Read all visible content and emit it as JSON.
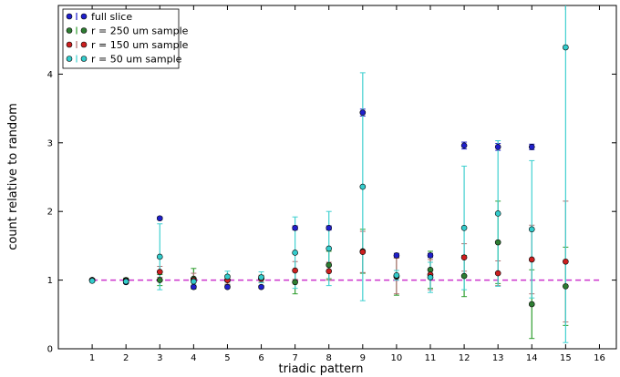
{
  "chart_data": {
    "type": "scatter",
    "title": "",
    "xlabel": "triadic pattern",
    "ylabel": "count relative to random",
    "xlim": [
      0,
      16.5
    ],
    "ylim": [
      0,
      5
    ],
    "x_ticks": [
      1,
      2,
      3,
      4,
      5,
      6,
      7,
      8,
      9,
      10,
      11,
      12,
      13,
      14,
      15,
      16
    ],
    "y_ticks": [
      0,
      1,
      2,
      3,
      4
    ],
    "grid": false,
    "legend_position": "top-left",
    "reference_line": {
      "y": 1,
      "color": "#cc33cc",
      "style": "dashed"
    },
    "series": [
      {
        "name": "full slice",
        "color": "#1f1fcc",
        "error_color": "#1f1fcc",
        "x": [
          1,
          2,
          3,
          4,
          5,
          6,
          7,
          8,
          9,
          10,
          11,
          12,
          13,
          14
        ],
        "y": [
          1.0,
          0.97,
          1.9,
          0.9,
          0.9,
          0.9,
          1.76,
          1.76,
          3.44,
          1.36,
          1.36,
          2.96,
          2.94,
          2.94
        ],
        "err": [
          0.02,
          0.02,
          0.02,
          0.02,
          0.02,
          0.02,
          0.03,
          0.03,
          0.05,
          0.03,
          0.03,
          0.05,
          0.05,
          0.04
        ]
      },
      {
        "name": "r = 250 um sample",
        "color": "#2e7d32",
        "error_color": "#2e9d2e",
        "x": [
          1,
          2,
          3,
          4,
          5,
          6,
          7,
          8,
          9,
          10,
          11,
          12,
          13,
          14,
          15
        ],
        "y": [
          1.0,
          1.0,
          1.0,
          1.02,
          1.0,
          1.02,
          0.97,
          1.22,
          1.42,
          1.05,
          1.15,
          1.06,
          1.55,
          0.65,
          0.91
        ],
        "err": [
          0.02,
          0.03,
          0.08,
          0.15,
          0.07,
          0.05,
          0.17,
          0.2,
          0.32,
          0.27,
          0.27,
          0.3,
          0.6,
          0.5,
          0.57
        ]
      },
      {
        "name": "r = 150 um sample",
        "color": "#cc1f1f",
        "error_color": "#b07070",
        "x": [
          1,
          2,
          3,
          4,
          5,
          6,
          7,
          8,
          9,
          10,
          11,
          12,
          13,
          14,
          15
        ],
        "y": [
          1.0,
          0.99,
          1.12,
          1.0,
          1.0,
          1.02,
          1.14,
          1.13,
          1.41,
          1.06,
          1.08,
          1.33,
          1.1,
          1.3,
          1.27
        ],
        "err": [
          0.02,
          0.02,
          0.08,
          0.1,
          0.06,
          0.05,
          0.13,
          0.13,
          0.3,
          0.26,
          0.22,
          0.2,
          0.18,
          0.5,
          0.88
        ]
      },
      {
        "name": "r = 50 um sample",
        "color": "#33cccc",
        "error_color": "#40d0d0",
        "x": [
          1,
          2,
          3,
          4,
          5,
          6,
          7,
          8,
          9,
          10,
          11,
          12,
          13,
          14,
          15
        ],
        "y": [
          0.99,
          0.98,
          1.34,
          0.98,
          1.05,
          1.04,
          1.4,
          1.46,
          2.36,
          1.07,
          1.04,
          1.76,
          1.97,
          1.74,
          4.39
        ],
        "err": [
          0.02,
          0.02,
          0.48,
          0.05,
          0.08,
          0.08,
          0.52,
          0.54,
          1.66,
          0.07,
          0.22,
          0.9,
          1.06,
          1.0,
          4.3
        ]
      }
    ]
  }
}
